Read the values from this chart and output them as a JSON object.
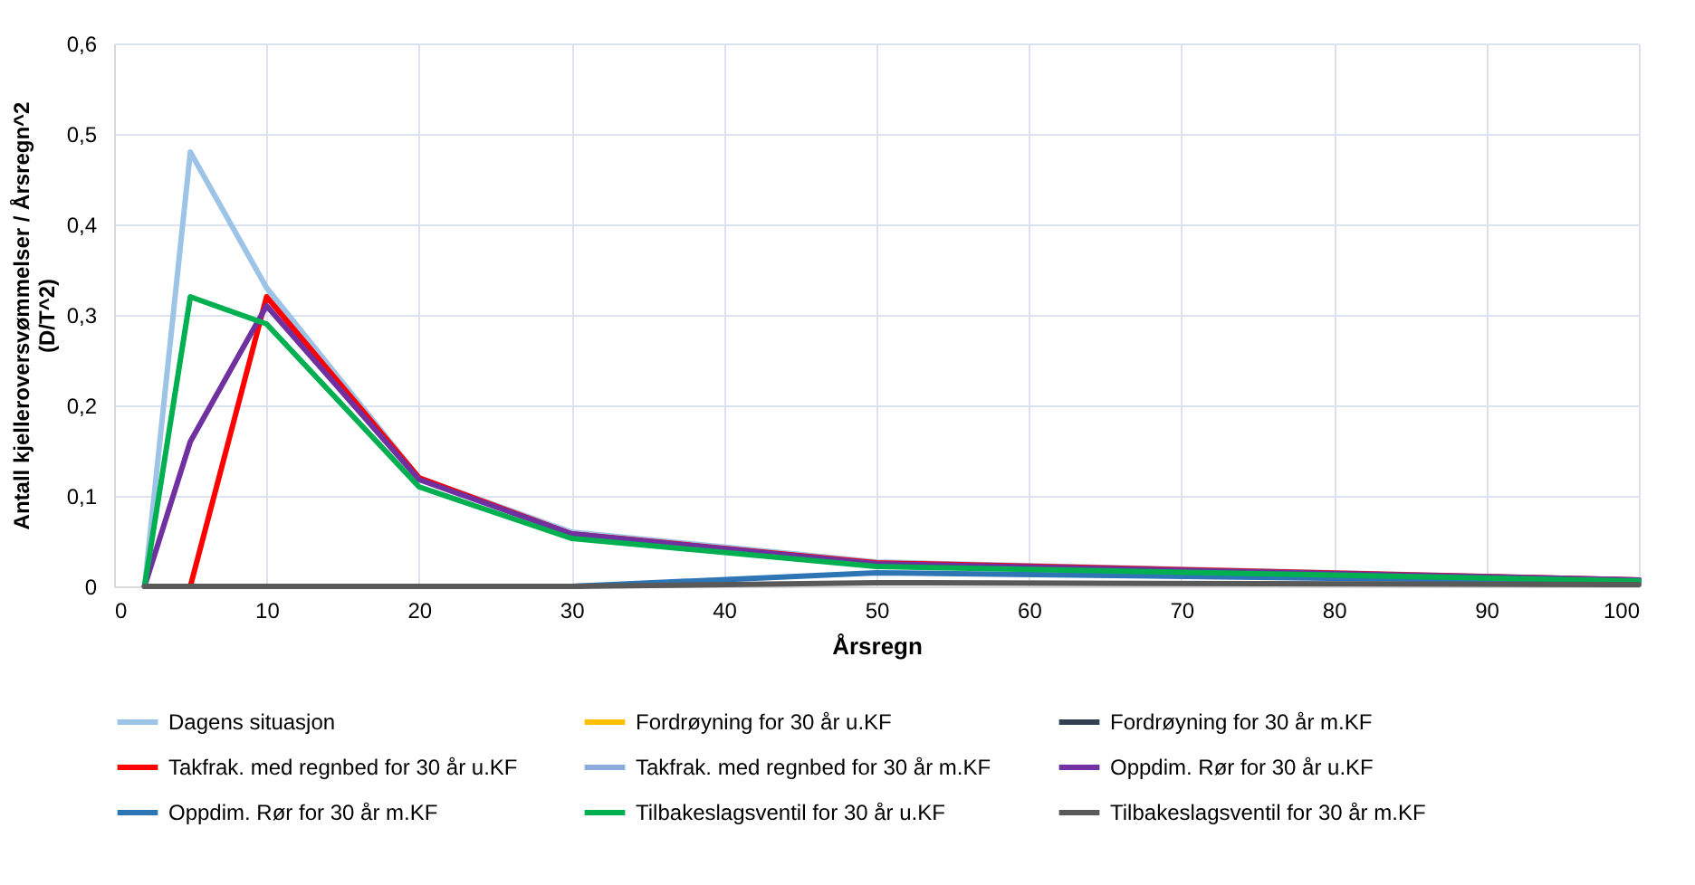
{
  "chart_data": {
    "type": "line",
    "xlabel": "Årsregn",
    "ylabel": "Antall kjelleroversvømmelser / Årsregn^2\n(D/T^2)",
    "x": [
      2,
      5,
      10,
      20,
      30,
      50,
      100
    ],
    "series": [
      {
        "name": "Dagens situasjon",
        "color": "#9dc3e6",
        "values": [
          0,
          0.48,
          0.33,
          0.12,
          0.06,
          0.027,
          0.007
        ]
      },
      {
        "name": "Fordrøyning for 30 år u.KF",
        "color": "#ffc000",
        "values": [
          null,
          null,
          null,
          null,
          null,
          null,
          null
        ]
      },
      {
        "name": "Fordrøyning for 30 år m.KF",
        "color": "#333f50",
        "values": [
          null,
          null,
          null,
          null,
          null,
          null,
          null
        ]
      },
      {
        "name": "Takfrak. med regnbed for 30 år u.KF",
        "color": "#ff0000",
        "values": [
          0,
          0,
          0.32,
          0.12,
          0.058,
          0.026,
          0.007
        ]
      },
      {
        "name": "Takfrak. med regnbed for 30 år m.KF",
        "color": "#8faadc",
        "values": [
          null,
          null,
          null,
          null,
          null,
          null,
          null
        ]
      },
      {
        "name": "Oppdim. Rør for 30 år u.KF",
        "color": "#7030a0",
        "values": [
          0,
          0.16,
          0.31,
          0.118,
          0.058,
          0.025,
          0.007
        ]
      },
      {
        "name": "Oppdim. Rør for 30 år m.KF",
        "color": "#2e75b6",
        "values": [
          null,
          null,
          null,
          null,
          0,
          0.015,
          0.005
        ]
      },
      {
        "name": "Tilbakeslagsventil for 30 år u.KF",
        "color": "#00b050",
        "values": [
          0,
          0.32,
          0.29,
          0.11,
          0.053,
          0.022,
          0.006
        ]
      },
      {
        "name": "Tilbakeslagsventil for 30 år m.KF",
        "color": "#595959",
        "values": [
          0,
          0,
          0,
          0,
          0,
          0.004,
          0.002
        ]
      }
    ],
    "xlim": [
      0,
      100
    ],
    "xticks": [
      0,
      10,
      20,
      30,
      40,
      50,
      60,
      70,
      80,
      90,
      100
    ],
    "ylim": [
      0,
      0.6
    ],
    "yticks": [
      0,
      {
        "value": 0.1,
        "label": "0,1"
      },
      {
        "value": 0.2,
        "label": "0,2"
      },
      {
        "value": 0.3,
        "label": "0,3"
      },
      {
        "value": 0.4,
        "label": "0,4"
      },
      {
        "value": 0.5,
        "label": "0,5"
      },
      {
        "value": 0.6,
        "label": "0,6"
      }
    ],
    "grid": true,
    "legend": "bottom",
    "marker": "none",
    "line_style": "solid"
  }
}
